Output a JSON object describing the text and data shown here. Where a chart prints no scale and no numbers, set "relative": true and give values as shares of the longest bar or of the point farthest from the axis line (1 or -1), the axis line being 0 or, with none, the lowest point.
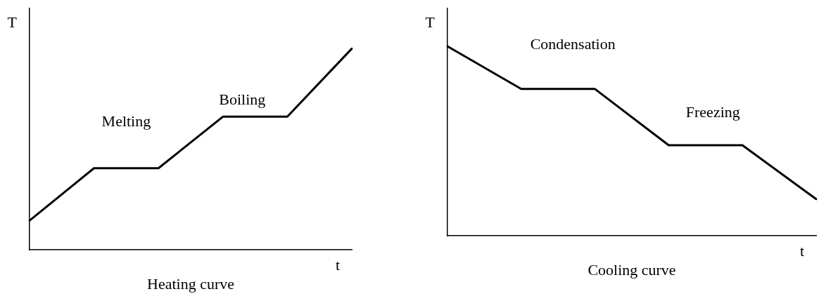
{
  "chart_data": [
    {
      "type": "line",
      "title": "Heating curve",
      "xlabel": "t",
      "ylabel": "T",
      "relative": true,
      "grid": false,
      "legend": false,
      "marker": "none",
      "line_style": "solid",
      "categories": [
        null,
        null,
        null,
        null,
        null,
        null
      ],
      "series": [
        {
          "color": "#000000",
          "values": [
            0.146,
            0.406,
            0.406,
            0.662,
            0.662,
            1
          ]
        }
      ],
      "annotations": [
        "Melting",
        "Boiling"
      ]
    },
    {
      "type": "line",
      "title": "Cooling curve",
      "xlabel": "t",
      "ylabel": "T",
      "relative": true,
      "grid": false,
      "legend": false,
      "marker": "none",
      "line_style": "solid",
      "categories": [
        null,
        null,
        null,
        null,
        null,
        null
      ],
      "series": [
        {
          "color": "#000000",
          "values": [
            1,
            0.775,
            0.775,
            0.478,
            0.478,
            0.194
          ]
        }
      ],
      "annotations": [
        "Condensation",
        "Freezing"
      ]
    }
  ]
}
